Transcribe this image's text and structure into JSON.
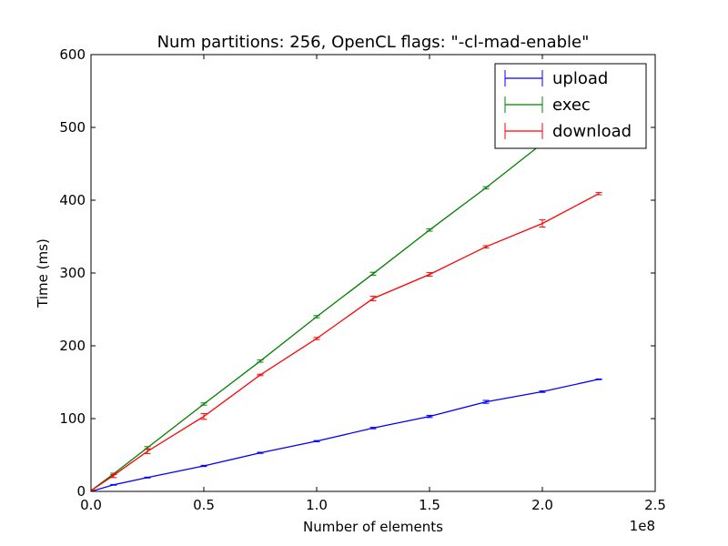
{
  "chart_data": {
    "type": "line",
    "title": "Num partitions: 256, OpenCL flags: \"-cl-mad-enable\"",
    "xlabel": "Number of elements",
    "ylabel": "Time (ms)",
    "x_offset_label": "1e8",
    "xlim": [
      0,
      2.5
    ],
    "ylim": [
      0,
      600
    ],
    "xticks": [
      0.0,
      0.5,
      1.0,
      1.5,
      2.0,
      2.5
    ],
    "xtick_labels": [
      "0.0",
      "0.5",
      "1.0",
      "1.5",
      "2.0",
      "2.5"
    ],
    "yticks": [
      0,
      100,
      200,
      300,
      400,
      500,
      600
    ],
    "ytick_labels": [
      "0",
      "100",
      "200",
      "300",
      "400",
      "500",
      "600"
    ],
    "legend_position": "top-right",
    "x": [
      0.0,
      0.1,
      0.25,
      0.5,
      0.75,
      1.0,
      1.25,
      1.5,
      1.75,
      2.0,
      2.25
    ],
    "series": [
      {
        "name": "upload",
        "color": "#0000ff",
        "values": [
          0,
          9,
          19,
          35,
          53,
          69,
          87,
          103,
          123,
          137,
          154
        ],
        "errors": [
          0.5,
          0.5,
          0.6,
          0.8,
          0.8,
          0.8,
          1,
          1.5,
          2,
          1,
          0.5
        ]
      },
      {
        "name": "exec",
        "color": "#008000",
        "values": [
          1,
          24,
          60,
          120,
          179,
          240,
          299,
          359,
          417,
          478,
          537
        ],
        "errors": [
          0.5,
          1,
          1.5,
          1.5,
          1.5,
          1.5,
          2,
          1.5,
          1.5,
          1.5,
          1.5
        ]
      },
      {
        "name": "download",
        "color": "#ff0000",
        "values": [
          1,
          22,
          55,
          103,
          160,
          210,
          265,
          298,
          336,
          368,
          409
        ],
        "errors": [
          0.5,
          3,
          3,
          4,
          1,
          1.5,
          3,
          2.5,
          1.5,
          5,
          1.5
        ]
      }
    ]
  }
}
